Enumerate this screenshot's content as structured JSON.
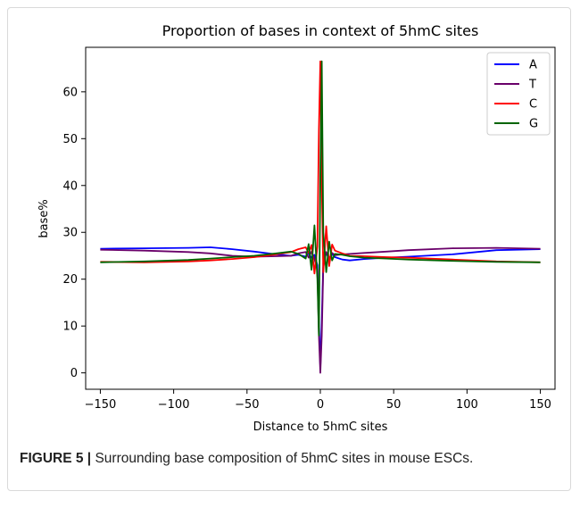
{
  "caption": {
    "label": "FIGURE 5 |",
    "text": "Surrounding base composition of 5hmC sites in mouse ESCs."
  },
  "chart_data": {
    "type": "line",
    "title": "Proportion of bases in context of 5hmC sites",
    "xlabel": "Distance to 5hmC sites",
    "ylabel": "base%",
    "xlim": [
      -160,
      160
    ],
    "ylim": [
      -3.5,
      69.5
    ],
    "xticks": [
      -150,
      -100,
      -50,
      0,
      50,
      100,
      150
    ],
    "yticks": [
      0,
      10,
      20,
      30,
      40,
      50,
      60
    ],
    "xtick_labels": [
      "−150",
      "−100",
      "−50",
      "0",
      "50",
      "100",
      "150"
    ],
    "ytick_labels": [
      "0",
      "10",
      "20",
      "30",
      "40",
      "50",
      "60"
    ],
    "legend_position": "top-right",
    "grid": false,
    "series": [
      {
        "name": "A",
        "color": "#0000ff",
        "x": [
          -150,
          -120,
          -90,
          -75,
          -60,
          -45,
          -30,
          -20,
          -15,
          -10,
          -8,
          -6,
          -4,
          -2,
          -1,
          0,
          1,
          2,
          4,
          6,
          8,
          10,
          15,
          20,
          30,
          45,
          60,
          90,
          120,
          150
        ],
        "y": [
          26.5,
          26.6,
          26.7,
          26.8,
          26.4,
          25.9,
          25.3,
          25.0,
          25.2,
          24.8,
          25.5,
          24.6,
          25.2,
          23.0,
          11.0,
          1.0,
          11.0,
          23.5,
          25.6,
          24.3,
          25.4,
          24.7,
          24.2,
          24.0,
          24.3,
          24.6,
          24.8,
          25.3,
          26.2,
          26.4
        ]
      },
      {
        "name": "T",
        "color": "#6a006a",
        "x": [
          -150,
          -120,
          -90,
          -75,
          -60,
          -45,
          -30,
          -20,
          -15,
          -10,
          -8,
          -6,
          -4,
          -2,
          -1,
          0,
          1,
          2,
          4,
          6,
          8,
          10,
          15,
          20,
          30,
          45,
          60,
          90,
          120,
          150
        ],
        "y": [
          26.3,
          26.1,
          25.8,
          25.5,
          25.0,
          24.8,
          24.9,
          25.0,
          25.5,
          25.8,
          24.6,
          25.9,
          24.3,
          22.0,
          8.0,
          0.0,
          8.0,
          22.5,
          25.8,
          24.4,
          25.6,
          25.1,
          25.3,
          25.4,
          25.6,
          25.9,
          26.2,
          26.6,
          26.7,
          26.5
        ]
      },
      {
        "name": "C",
        "color": "#ff0000",
        "x": [
          -150,
          -120,
          -90,
          -75,
          -60,
          -45,
          -30,
          -20,
          -15,
          -10,
          -8,
          -6,
          -4,
          -2,
          -1,
          0,
          1,
          2,
          4,
          6,
          8,
          10,
          15,
          20,
          30,
          45,
          60,
          90,
          120,
          150
        ],
        "y": [
          23.7,
          23.6,
          23.8,
          24.0,
          24.3,
          24.7,
          25.3,
          25.8,
          26.4,
          26.8,
          25.6,
          27.3,
          21.2,
          27.0,
          52.0,
          66.5,
          40.0,
          21.5,
          31.3,
          22.8,
          27.4,
          26.1,
          25.5,
          25.0,
          24.9,
          24.7,
          24.6,
          24.2,
          23.8,
          23.6
        ]
      },
      {
        "name": "G",
        "color": "#006400",
        "x": [
          -150,
          -120,
          -90,
          -75,
          -60,
          -45,
          -30,
          -20,
          -15,
          -10,
          -8,
          -6,
          -4,
          -2,
          -1,
          0,
          1,
          2,
          4,
          6,
          8,
          10,
          15,
          20,
          30,
          45,
          60,
          90,
          120,
          150
        ],
        "y": [
          23.6,
          23.8,
          24.1,
          24.4,
          24.7,
          25.0,
          25.5,
          25.9,
          25.4,
          24.4,
          27.5,
          22.0,
          31.5,
          20.0,
          8.0,
          42.0,
          66.5,
          30.0,
          21.5,
          28.0,
          24.0,
          25.4,
          25.2,
          24.9,
          24.6,
          24.4,
          24.2,
          23.9,
          23.7,
          23.6
        ]
      }
    ]
  }
}
